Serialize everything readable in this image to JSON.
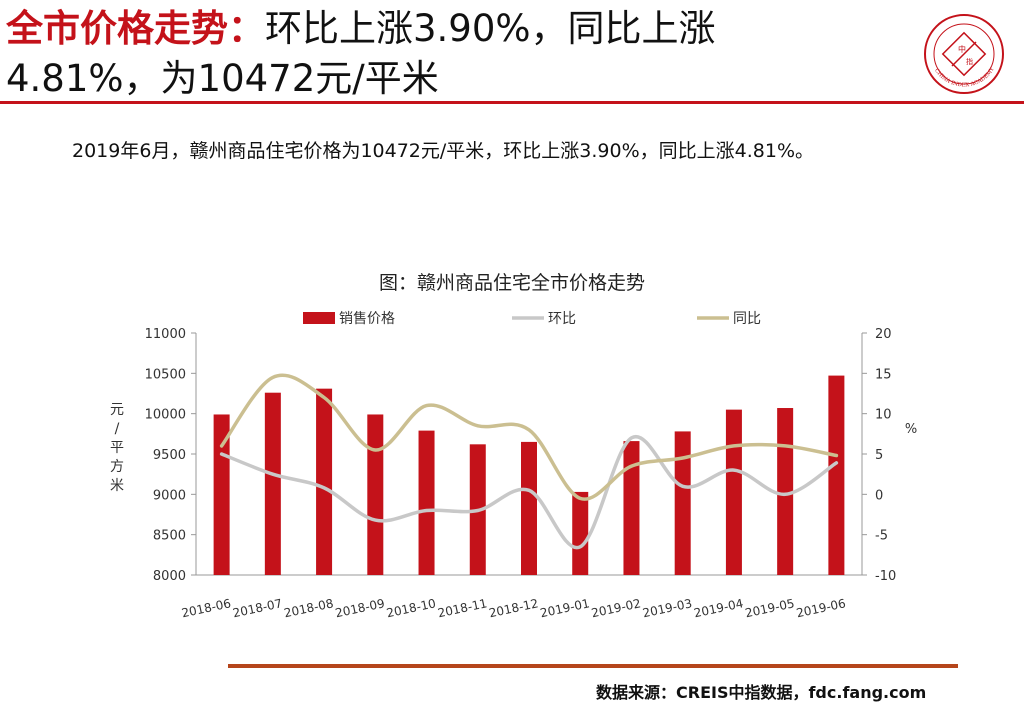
{
  "header": {
    "title_red": "全市价格走势：",
    "title_black_line1": "环比上涨3.90%，同比上涨",
    "title_line2": "4.81%，为10472元/平米"
  },
  "summary": "2019年6月，赣州商品住宅价格为10472元/平米，环比上涨3.90%，同比上涨4.81%。",
  "chart_title": "图：赣州商品住宅全市价格走势",
  "logo": {
    "name": "china-index-academy-seal",
    "text_outer": "CHINA INDEX ACADEMY",
    "text_center": "中指"
  },
  "source": "数据来源：CREIS中指数据，fdc.fang.com",
  "colors": {
    "accent": "#c4121a",
    "bar": "#c4121a",
    "mom": "#c8c8c8",
    "yoy": "#cbbf91",
    "rule": "#b5451b"
  },
  "chart_data": {
    "type": "bar",
    "title": "图：赣州商品住宅全市价格走势",
    "categories": [
      "2018-06",
      "2018-07",
      "2018-08",
      "2018-09",
      "2018-10",
      "2018-11",
      "2018-12",
      "2019-01",
      "2019-02",
      "2019-03",
      "2019-04",
      "2019-05",
      "2019-06"
    ],
    "ylabel": "元/平方米",
    "y2label": "%",
    "ylim": [
      8000,
      11000
    ],
    "y2lim": [
      -10,
      20
    ],
    "yticks": [
      "8000",
      "8500",
      "9000",
      "9500",
      "10000",
      "10500",
      "11000"
    ],
    "y2ticks": [
      "-10",
      "-5",
      "0",
      "5",
      "10",
      "15",
      "20"
    ],
    "legend_position": "top",
    "grid": false,
    "series": [
      {
        "name": "销售价格",
        "type": "bar",
        "axis": "left",
        "values": [
          9990,
          10260,
          10310,
          9990,
          9790,
          9620,
          9650,
          9030,
          9660,
          9780,
          10050,
          10070,
          10472
        ]
      },
      {
        "name": "环比",
        "type": "line",
        "axis": "right",
        "values": [
          5.0,
          2.5,
          0.8,
          -3.2,
          -2.0,
          -2.0,
          0.5,
          -6.5,
          7.0,
          1.0,
          3.0,
          0.0,
          3.9
        ]
      },
      {
        "name": "同比",
        "type": "line",
        "axis": "right",
        "values": [
          6.0,
          14.5,
          12.0,
          5.5,
          11.0,
          8.5,
          8.0,
          -0.5,
          3.5,
          4.5,
          6.0,
          6.0,
          4.81
        ]
      }
    ]
  }
}
